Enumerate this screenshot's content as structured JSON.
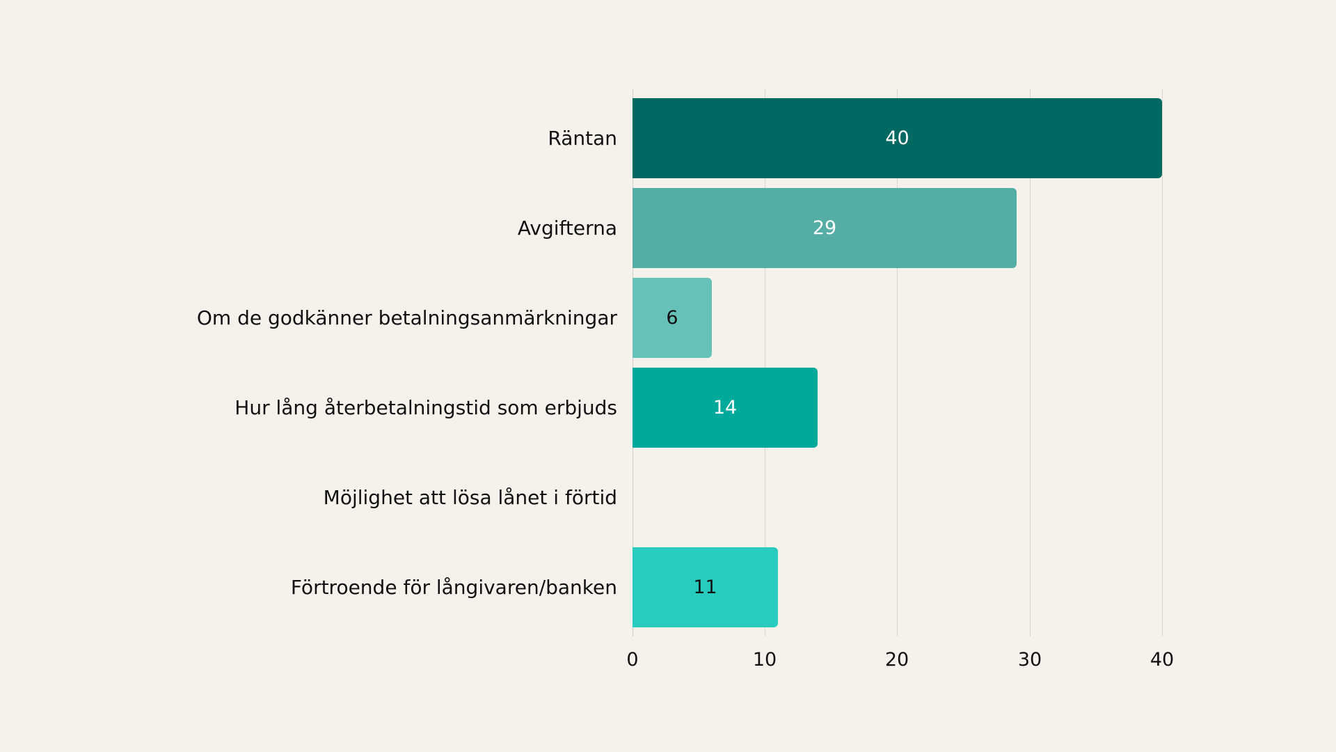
{
  "chart_data": {
    "type": "bar",
    "orientation": "horizontal",
    "title": "",
    "xlabel": "",
    "ylabel": "",
    "xlim": [
      0,
      40
    ],
    "grid": true,
    "legend": null,
    "categories": [
      "Räntan",
      "Avgifterna",
      "Om de godkänner betalningsanmärkningar",
      "Hur lång återbetalningstid som erbjuds",
      "Möjlighet att lösa lånet i förtid",
      "Förtroende för långivaren/banken"
    ],
    "values": [
      40,
      29,
      6,
      14,
      0,
      11
    ],
    "data_labels": [
      "40",
      "29",
      "6",
      "14",
      "",
      "11"
    ],
    "x_ticks": [
      "0",
      "10",
      "20",
      "30",
      "40"
    ],
    "colors": [
      "#016961",
      "#55aea6",
      "#66c2b8",
      "#00a99a",
      "#26c5b7",
      "#28ccbe"
    ],
    "label_colors": [
      "#ffffff",
      "#ffffff",
      "#111111",
      "#ffffff",
      "#ffffff",
      "#111111"
    ]
  }
}
